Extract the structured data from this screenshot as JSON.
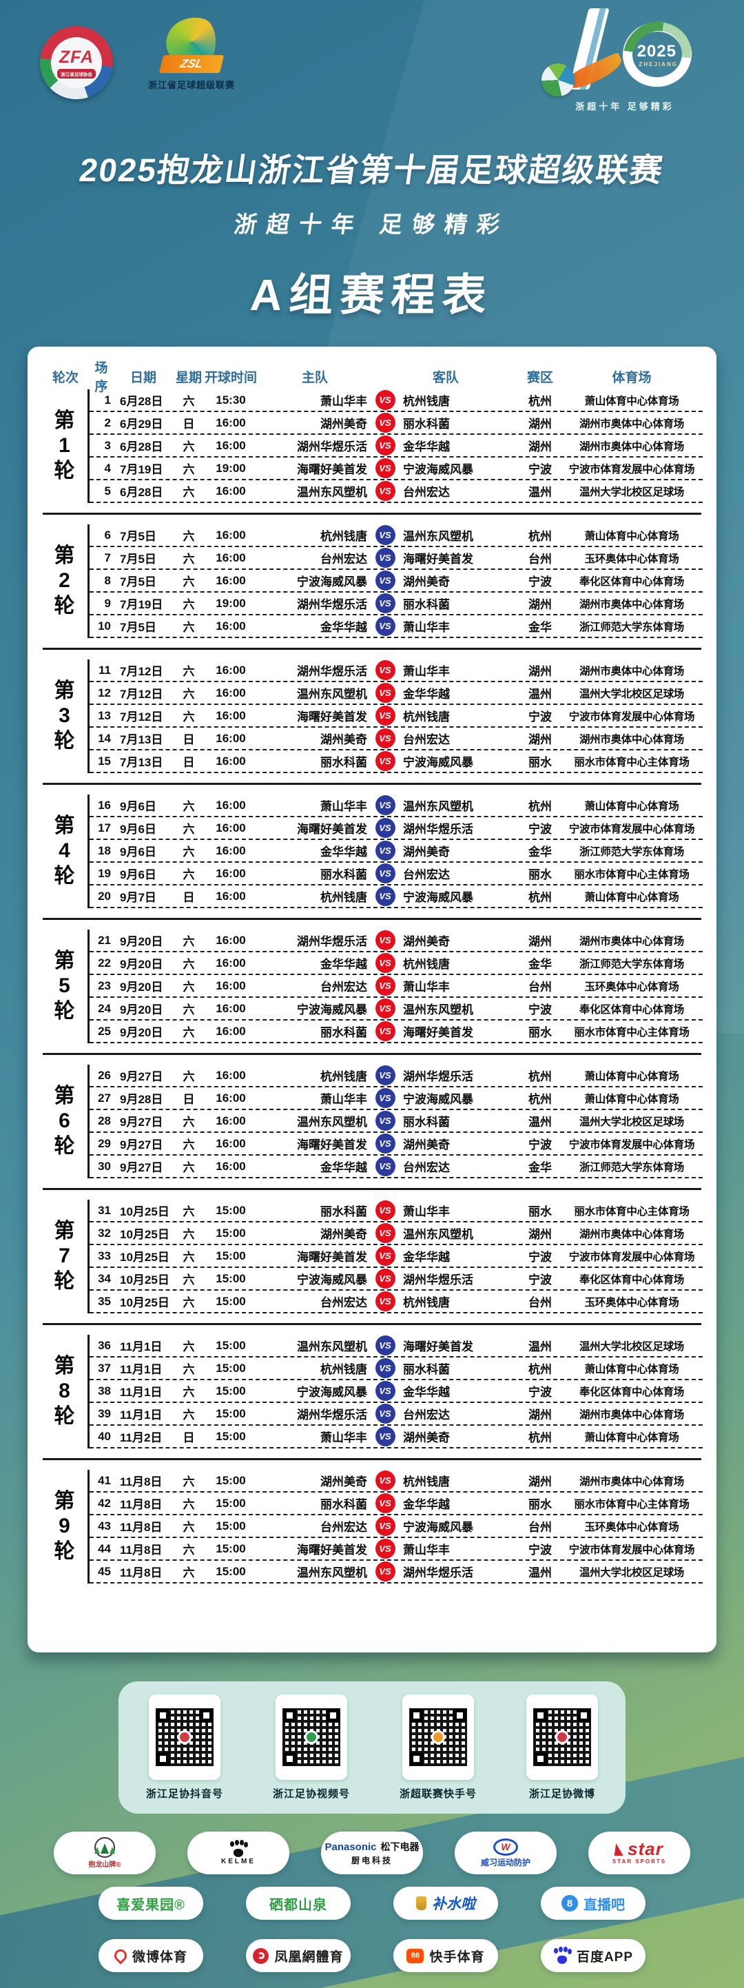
{
  "colors": {
    "accent_red": "#e60f1e",
    "accent_blue": "#2b3a9d",
    "header_text": "#2e6d9c",
    "panel_bg": "#ffffff",
    "qr_panel_bg": "#cfe8e3",
    "bg_top": "#2f7190",
    "bg_bottom": "#93ba72"
  },
  "header": {
    "zfa": {
      "abbr": "ZFA",
      "ribbon": "浙江省足球协会"
    },
    "zsl": {
      "abbr": "ZSL",
      "caption": "浙江省足球超级联赛"
    },
    "anniversary": {
      "number_one": "1",
      "year": "2025",
      "region": "ZHEJIANG",
      "tagline": "浙超十年 足够精彩"
    },
    "title": "2025抱龙山浙江省第十届足球超级联赛",
    "subtitle": "浙超十年 足够精彩",
    "group_title": "A组赛程表"
  },
  "table": {
    "columns": [
      "轮次",
      "场序",
      "日期",
      "星期",
      "开球时间",
      "主队",
      "客队",
      "赛区",
      "体育场"
    ],
    "vs_label": "VS",
    "rounds": [
      {
        "label": "第1轮",
        "badge": "red",
        "matches": [
          {
            "no": "1",
            "date": "6月28日",
            "week": "六",
            "time": "15:30",
            "home": "萧山华丰",
            "away": "杭州钱唐",
            "zone": "杭州",
            "stadium": "萧山体育中心体育场"
          },
          {
            "no": "2",
            "date": "6月29日",
            "week": "日",
            "time": "16:00",
            "home": "湖州美奇",
            "away": "丽水科菌",
            "zone": "湖州",
            "stadium": "湖州市奥体中心体育场"
          },
          {
            "no": "3",
            "date": "6月28日",
            "week": "六",
            "time": "16:00",
            "home": "湖州华煜乐活",
            "away": "金华华越",
            "zone": "湖州",
            "stadium": "湖州市奥体中心体育场"
          },
          {
            "no": "4",
            "date": "7月19日",
            "week": "六",
            "time": "19:00",
            "home": "海曙好美首发",
            "away": "宁波海威风暴",
            "zone": "宁波",
            "stadium": "宁波市体育发展中心体育场"
          },
          {
            "no": "5",
            "date": "6月28日",
            "week": "六",
            "time": "16:00",
            "home": "温州东风塑机",
            "away": "台州宏达",
            "zone": "温州",
            "stadium": "温州大学北校区足球场"
          }
        ]
      },
      {
        "label": "第2轮",
        "badge": "blue",
        "matches": [
          {
            "no": "6",
            "date": "7月5日",
            "week": "六",
            "time": "16:00",
            "home": "杭州钱唐",
            "away": "温州东风塑机",
            "zone": "杭州",
            "stadium": "萧山体育中心体育场"
          },
          {
            "no": "7",
            "date": "7月5日",
            "week": "六",
            "time": "16:00",
            "home": "台州宏达",
            "away": "海曙好美首发",
            "zone": "台州",
            "stadium": "玉环奥体中心体育场"
          },
          {
            "no": "8",
            "date": "7月5日",
            "week": "六",
            "time": "16:00",
            "home": "宁波海威风暴",
            "away": "湖州美奇",
            "zone": "宁波",
            "stadium": "奉化区体育中心体育场"
          },
          {
            "no": "9",
            "date": "7月19日",
            "week": "六",
            "time": "19:00",
            "home": "湖州华煜乐活",
            "away": "丽水科菌",
            "zone": "湖州",
            "stadium": "湖州市奥体中心体育场"
          },
          {
            "no": "10",
            "date": "7月5日",
            "week": "六",
            "time": "16:00",
            "home": "金华华越",
            "away": "萧山华丰",
            "zone": "金华",
            "stadium": "浙江师范大学东体育场"
          }
        ]
      },
      {
        "label": "第3轮",
        "badge": "red",
        "matches": [
          {
            "no": "11",
            "date": "7月12日",
            "week": "六",
            "time": "16:00",
            "home": "湖州华煜乐活",
            "away": "萧山华丰",
            "zone": "湖州",
            "stadium": "湖州市奥体中心体育场"
          },
          {
            "no": "12",
            "date": "7月12日",
            "week": "六",
            "time": "16:00",
            "home": "温州东风塑机",
            "away": "金华华越",
            "zone": "温州",
            "stadium": "温州大学北校区足球场"
          },
          {
            "no": "13",
            "date": "7月12日",
            "week": "六",
            "time": "16:00",
            "home": "海曙好美首发",
            "away": "杭州钱唐",
            "zone": "宁波",
            "stadium": "宁波市体育发展中心体育场"
          },
          {
            "no": "14",
            "date": "7月13日",
            "week": "日",
            "time": "16:00",
            "home": "湖州美奇",
            "away": "台州宏达",
            "zone": "湖州",
            "stadium": "湖州市奥体中心体育场"
          },
          {
            "no": "15",
            "date": "7月13日",
            "week": "日",
            "time": "16:00",
            "home": "丽水科菌",
            "away": "宁波海威风暴",
            "zone": "丽水",
            "stadium": "丽水市体育中心主体育场"
          }
        ]
      },
      {
        "label": "第4轮",
        "badge": "blue",
        "matches": [
          {
            "no": "16",
            "date": "9月6日",
            "week": "六",
            "time": "16:00",
            "home": "萧山华丰",
            "away": "温州东风塑机",
            "zone": "杭州",
            "stadium": "萧山体育中心体育场"
          },
          {
            "no": "17",
            "date": "9月6日",
            "week": "六",
            "time": "16:00",
            "home": "海曙好美首发",
            "away": "湖州华煜乐活",
            "zone": "宁波",
            "stadium": "宁波市体育发展中心体育场"
          },
          {
            "no": "18",
            "date": "9月6日",
            "week": "六",
            "time": "16:00",
            "home": "金华华越",
            "away": "湖州美奇",
            "zone": "金华",
            "stadium": "浙江师范大学东体育场"
          },
          {
            "no": "19",
            "date": "9月6日",
            "week": "六",
            "time": "16:00",
            "home": "丽水科菌",
            "away": "台州宏达",
            "zone": "丽水",
            "stadium": "丽水市体育中心主体育场"
          },
          {
            "no": "20",
            "date": "9月7日",
            "week": "日",
            "time": "16:00",
            "home": "杭州钱唐",
            "away": "宁波海威风暴",
            "zone": "杭州",
            "stadium": "萧山体育中心体育场"
          }
        ]
      },
      {
        "label": "第5轮",
        "badge": "red",
        "matches": [
          {
            "no": "21",
            "date": "9月20日",
            "week": "六",
            "time": "16:00",
            "home": "湖州华煜乐活",
            "away": "湖州美奇",
            "zone": "湖州",
            "stadium": "湖州市奥体中心体育场"
          },
          {
            "no": "22",
            "date": "9月20日",
            "week": "六",
            "time": "16:00",
            "home": "金华华越",
            "away": "杭州钱唐",
            "zone": "金华",
            "stadium": "浙江师范大学东体育场"
          },
          {
            "no": "23",
            "date": "9月20日",
            "week": "六",
            "time": "16:00",
            "home": "台州宏达",
            "away": "萧山华丰",
            "zone": "台州",
            "stadium": "玉环奥体中心体育场"
          },
          {
            "no": "24",
            "date": "9月20日",
            "week": "六",
            "time": "16:00",
            "home": "宁波海威风暴",
            "away": "温州东风塑机",
            "zone": "宁波",
            "stadium": "奉化区体育中心体育场"
          },
          {
            "no": "25",
            "date": "9月20日",
            "week": "六",
            "time": "16:00",
            "home": "丽水科菌",
            "away": "海曙好美首发",
            "zone": "丽水",
            "stadium": "丽水市体育中心主体育场"
          }
        ]
      },
      {
        "label": "第6轮",
        "badge": "blue",
        "matches": [
          {
            "no": "26",
            "date": "9月27日",
            "week": "六",
            "time": "16:00",
            "home": "杭州钱唐",
            "away": "湖州华煜乐活",
            "zone": "杭州",
            "stadium": "萧山体育中心体育场"
          },
          {
            "no": "27",
            "date": "9月28日",
            "week": "日",
            "time": "16:00",
            "home": "萧山华丰",
            "away": "宁波海威风暴",
            "zone": "杭州",
            "stadium": "萧山体育中心体育场"
          },
          {
            "no": "28",
            "date": "9月27日",
            "week": "六",
            "time": "16:00",
            "home": "温州东风塑机",
            "away": "丽水科菌",
            "zone": "温州",
            "stadium": "温州大学北校区足球场"
          },
          {
            "no": "29",
            "date": "9月27日",
            "week": "六",
            "time": "16:00",
            "home": "海曙好美首发",
            "away": "湖州美奇",
            "zone": "宁波",
            "stadium": "宁波市体育发展中心体育场"
          },
          {
            "no": "30",
            "date": "9月27日",
            "week": "六",
            "time": "16:00",
            "home": "金华华越",
            "away": "台州宏达",
            "zone": "金华",
            "stadium": "浙江师范大学东体育场"
          }
        ]
      },
      {
        "label": "第7轮",
        "badge": "red",
        "matches": [
          {
            "no": "31",
            "date": "10月25日",
            "week": "六",
            "time": "15:00",
            "home": "丽水科菌",
            "away": "萧山华丰",
            "zone": "丽水",
            "stadium": "丽水市体育中心主体育场"
          },
          {
            "no": "32",
            "date": "10月25日",
            "week": "六",
            "time": "15:00",
            "home": "湖州美奇",
            "away": "温州东风塑机",
            "zone": "湖州",
            "stadium": "湖州市奥体中心体育场"
          },
          {
            "no": "33",
            "date": "10月25日",
            "week": "六",
            "time": "15:00",
            "home": "海曙好美首发",
            "away": "金华华越",
            "zone": "宁波",
            "stadium": "宁波市体育发展中心体育场"
          },
          {
            "no": "34",
            "date": "10月25日",
            "week": "六",
            "time": "15:00",
            "home": "宁波海威风暴",
            "away": "湖州华煜乐活",
            "zone": "宁波",
            "stadium": "奉化区体育中心体育场"
          },
          {
            "no": "35",
            "date": "10月25日",
            "week": "六",
            "time": "15:00",
            "home": "台州宏达",
            "away": "杭州钱唐",
            "zone": "台州",
            "stadium": "玉环奥体中心体育场"
          }
        ]
      },
      {
        "label": "第8轮",
        "badge": "blue",
        "matches": [
          {
            "no": "36",
            "date": "11月1日",
            "week": "六",
            "time": "15:00",
            "home": "温州东风塑机",
            "away": "海曙好美首发",
            "zone": "温州",
            "stadium": "温州大学北校区足球场"
          },
          {
            "no": "37",
            "date": "11月1日",
            "week": "六",
            "time": "15:00",
            "home": "杭州钱唐",
            "away": "丽水科菌",
            "zone": "杭州",
            "stadium": "萧山体育中心体育场"
          },
          {
            "no": "38",
            "date": "11月1日",
            "week": "六",
            "time": "15:00",
            "home": "宁波海威风暴",
            "away": "金华华越",
            "zone": "宁波",
            "stadium": "奉化区体育中心体育场"
          },
          {
            "no": "39",
            "date": "11月1日",
            "week": "六",
            "time": "15:00",
            "home": "湖州华煜乐活",
            "away": "台州宏达",
            "zone": "湖州",
            "stadium": "湖州市奥体中心体育场"
          },
          {
            "no": "40",
            "date": "11月2日",
            "week": "日",
            "time": "15:00",
            "home": "萧山华丰",
            "away": "湖州美奇",
            "zone": "杭州",
            "stadium": "萧山体育中心体育场"
          }
        ]
      },
      {
        "label": "第9轮",
        "badge": "red",
        "matches": [
          {
            "no": "41",
            "date": "11月8日",
            "week": "六",
            "time": "15:00",
            "home": "湖州美奇",
            "away": "杭州钱唐",
            "zone": "湖州",
            "stadium": "湖州市奥体中心体育场"
          },
          {
            "no": "42",
            "date": "11月8日",
            "week": "六",
            "time": "15:00",
            "home": "丽水科菌",
            "away": "金华华越",
            "zone": "丽水",
            "stadium": "丽水市体育中心主体育场"
          },
          {
            "no": "43",
            "date": "11月8日",
            "week": "六",
            "time": "15:00",
            "home": "台州宏达",
            "away": "宁波海威风暴",
            "zone": "台州",
            "stadium": "玉环奥体中心体育场"
          },
          {
            "no": "44",
            "date": "11月8日",
            "week": "六",
            "time": "15:00",
            "home": "海曙好美首发",
            "away": "萧山华丰",
            "zone": "宁波",
            "stadium": "宁波市体育发展中心体育场"
          },
          {
            "no": "45",
            "date": "11月8日",
            "week": "六",
            "time": "15:00",
            "home": "温州东风塑机",
            "away": "湖州华煜乐活",
            "zone": "温州",
            "stadium": "温州大学北校区足球场"
          }
        ]
      }
    ]
  },
  "qr_panel": {
    "items": [
      {
        "label": "浙江足协抖音号",
        "dot_color": "#d23a43"
      },
      {
        "label": "浙江足协视频号",
        "dot_color": "#2f9e53"
      },
      {
        "label": "浙超联赛快手号",
        "dot_color": "#f29a2e"
      },
      {
        "label": "浙江足协微博",
        "dot_color": "#d23a43"
      }
    ]
  },
  "sponsors": {
    "baolongshan": {
      "label": "抱龙山牌®"
    },
    "kelme": {
      "label": "KELME"
    },
    "panasonic": {
      "brand": "Panasonic",
      "name": "松下电器",
      "sub": "厨电科技"
    },
    "weixi": {
      "initial": "W",
      "label": "威习运动防护"
    },
    "star": {
      "brand": "star",
      "sub": "STAR SPORTS"
    },
    "xiaiguoyuan": {
      "label": "喜爱果园®"
    },
    "xidushanquan": {
      "label": "硒都山泉"
    },
    "bushuila": {
      "label": "补水啦"
    },
    "zhiboba": {
      "icon_text": "8",
      "label": "直播吧"
    },
    "weibo": {
      "label": "微博体育"
    },
    "fenghuang": {
      "label": "凤凰網體育"
    },
    "kuaishou": {
      "icon_text": "86",
      "label": "快手体育"
    },
    "baidu": {
      "label": "百度APP"
    }
  }
}
